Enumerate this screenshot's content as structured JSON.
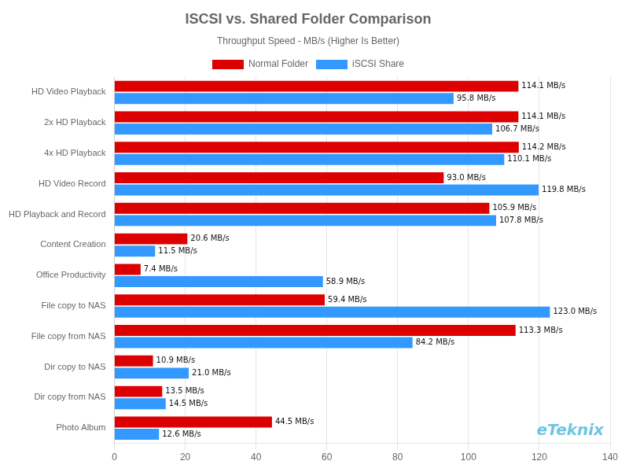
{
  "chart_data": {
    "type": "bar",
    "orientation": "horizontal",
    "title": "ISCSI vs. Shared Folder Comparison",
    "subtitle": "Throughput Speed - MB/s (Higher Is Better)",
    "categories": [
      "HD Video Playback",
      "2x HD Playback",
      "4x HD Playback",
      "HD Video Record",
      "HD Playback and Record",
      "Content Creation",
      "Office Productivity",
      "File copy to NAS",
      "File copy from NAS",
      "Dir copy to NAS",
      "Dir copy from NAS",
      "Photo Album"
    ],
    "series": [
      {
        "name": "Normal Folder",
        "color": "#DD0000",
        "values": [
          114.1,
          114.1,
          114.2,
          93.0,
          105.9,
          20.6,
          7.4,
          59.4,
          113.3,
          10.9,
          13.5,
          44.5
        ],
        "value_labels": [
          "114.1 MB/s",
          "114.1 MB/s",
          "114.2 MB/s",
          "93.0 MB/s",
          "105.9 MB/s",
          "20.6 MB/s",
          "7.4 MB/s",
          "59.4 MB/s",
          "113.3 MB/s",
          "10.9 MB/s",
          "13.5 MB/s",
          "44.5 MB/s"
        ]
      },
      {
        "name": "iSCSI Share",
        "color": "#3399FF",
        "values": [
          95.8,
          106.7,
          110.1,
          119.8,
          107.8,
          11.5,
          58.9,
          123.0,
          84.2,
          21.0,
          14.5,
          12.6
        ],
        "value_labels": [
          "95.8 MB/s",
          "106.7 MB/s",
          "110.1 MB/s",
          "119.8 MB/s",
          "107.8 MB/s",
          "11.5 MB/s",
          "58.9 MB/s",
          "123.0 MB/s",
          "84.2 MB/s",
          "21.0 MB/s",
          "14.5 MB/s",
          "12.6 MB/s"
        ]
      }
    ],
    "xlim": [
      0,
      140
    ],
    "xticks": [
      0,
      20,
      40,
      60,
      80,
      100,
      120,
      140
    ],
    "grid": true,
    "legend": "top",
    "data_labels": true,
    "annotations": [
      {
        "text": "eTeknix",
        "color": "#55BBDD"
      }
    ]
  }
}
